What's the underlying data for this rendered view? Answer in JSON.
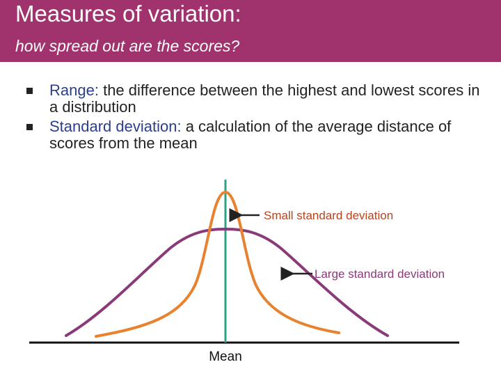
{
  "header": {
    "title": "Measures of variation:",
    "subtitle": "how spread out are the scores?"
  },
  "bullets": [
    {
      "term": "Range",
      "sep": ":",
      "text": " the difference between the highest and lowest scores in a distribution"
    },
    {
      "term": "Standard deviation",
      "sep": ":",
      "text": " a calculation of the average distance of scores from the mean"
    }
  ],
  "diagram": {
    "small_sd_label": "Small standard deviation",
    "large_sd_label": "Large standard deviation",
    "mean_label": "Mean"
  },
  "colors": {
    "header_bg": "#a0336e",
    "term": "#2b3f8a",
    "small_curve": "#e8822f",
    "large_curve": "#8a3a78",
    "mean_line": "#2aa385"
  }
}
